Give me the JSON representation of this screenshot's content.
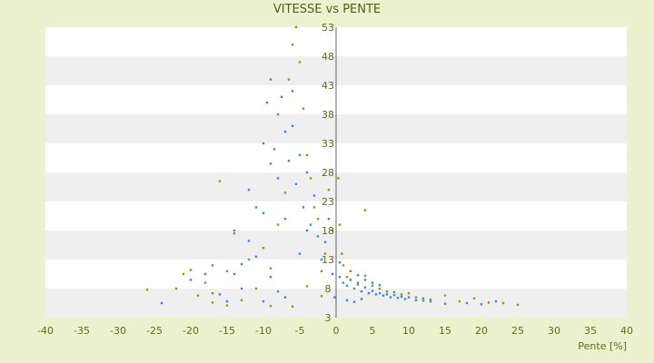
{
  "chart_data": {
    "type": "scatter",
    "title": "VITESSE vs PENTE",
    "xlabel": "Pente [%]",
    "ylabel": "",
    "xlim": [
      -40,
      40
    ],
    "ylim": [
      3,
      53
    ],
    "x_ticks": [
      -40,
      -35,
      -30,
      -25,
      -20,
      -15,
      -10,
      -5,
      0,
      5,
      10,
      15,
      20,
      25,
      30,
      35,
      40
    ],
    "y_ticks": [
      3,
      8,
      13,
      18,
      23,
      28,
      33,
      38,
      43,
      48,
      53
    ],
    "grid": true,
    "legend": "none",
    "colors": {
      "page_background": "#ecf2cf",
      "plot_band_light": "#ffffff",
      "plot_band_dark": "#efefef",
      "axis_text": "#5c6b1a"
    },
    "series": [
      {
        "color": "#3a8ad8",
        "points": [
          [
            -24,
            5.5
          ],
          [
            -20,
            9.5
          ],
          [
            -18,
            10.5
          ],
          [
            -17,
            12
          ],
          [
            -16,
            7
          ],
          [
            -15,
            5.8
          ],
          [
            -14,
            10.5
          ],
          [
            -13,
            12.2
          ],
          [
            -12,
            16.2
          ],
          [
            -11,
            13.5
          ],
          [
            -10,
            21
          ],
          [
            -9,
            29.5
          ],
          [
            -8.5,
            32
          ],
          [
            -8,
            38
          ],
          [
            -7.5,
            41
          ],
          [
            -7,
            35
          ],
          [
            -6.5,
            30
          ],
          [
            -6,
            42
          ],
          [
            -5.5,
            26
          ],
          [
            -5,
            31
          ],
          [
            -4.5,
            22
          ],
          [
            -4,
            28
          ],
          [
            -3.5,
            19
          ],
          [
            -3,
            24
          ],
          [
            -2.5,
            17
          ],
          [
            -2,
            13
          ],
          [
            -1.5,
            16
          ],
          [
            -1,
            20
          ],
          [
            -0.5,
            10.5
          ],
          [
            -0.2,
            6.5
          ],
          [
            -12,
            25
          ],
          [
            -11,
            22
          ],
          [
            -10,
            33
          ],
          [
            -9.5,
            40
          ],
          [
            -9,
            44
          ],
          [
            -8,
            27
          ],
          [
            -7,
            20
          ],
          [
            -6,
            36
          ],
          [
            -5,
            14
          ],
          [
            -4,
            18
          ],
          [
            -14,
            18
          ],
          [
            -13,
            8
          ],
          [
            -9,
            10
          ],
          [
            -7,
            6.5
          ],
          [
            -10,
            5.8
          ],
          [
            -8,
            7.5
          ],
          [
            0.5,
            10
          ],
          [
            1,
            9
          ],
          [
            1.5,
            8.5
          ],
          [
            2,
            9.5
          ],
          [
            2.5,
            8
          ],
          [
            3,
            8.7
          ],
          [
            3.5,
            7.5
          ],
          [
            4,
            8.2
          ],
          [
            4.5,
            7.2
          ],
          [
            5,
            7.6
          ],
          [
            5.5,
            7
          ],
          [
            6,
            7.2
          ],
          [
            6.5,
            6.8
          ],
          [
            7,
            7
          ],
          [
            7.5,
            6.5
          ],
          [
            8,
            6.9
          ],
          [
            8.5,
            6.4
          ],
          [
            9,
            6.6
          ],
          [
            9.5,
            6.2
          ],
          [
            10,
            6.5
          ],
          [
            11,
            6
          ],
          [
            12,
            6.3
          ],
          [
            13,
            5.8
          ],
          [
            15,
            5.4
          ],
          [
            18,
            5.5
          ],
          [
            20,
            5.3
          ],
          [
            22,
            5.8
          ],
          [
            2,
            11
          ],
          [
            3,
            10.3
          ],
          [
            4,
            9.5
          ],
          [
            5,
            9
          ],
          [
            6,
            8.6
          ],
          [
            1.5,
            6
          ],
          [
            2.5,
            5.7
          ],
          [
            3.5,
            6.2
          ],
          [
            0.5,
            12.5
          ]
        ]
      },
      {
        "color": "#8f9a12",
        "points": [
          [
            -26,
            7.8
          ],
          [
            -22,
            8
          ],
          [
            -21,
            10.5
          ],
          [
            -20,
            11.2
          ],
          [
            -19,
            6.8
          ],
          [
            -18,
            9
          ],
          [
            -17,
            7.2
          ],
          [
            -16,
            26.5
          ],
          [
            -15,
            11
          ],
          [
            -14,
            17.5
          ],
          [
            -13,
            6
          ],
          [
            -12,
            13
          ],
          [
            -11,
            8
          ],
          [
            -10,
            15
          ],
          [
            -9,
            11.5
          ],
          [
            -8,
            19
          ],
          [
            -7,
            24.5
          ],
          [
            -6.5,
            44
          ],
          [
            -6,
            50
          ],
          [
            -5.5,
            53
          ],
          [
            -5,
            47
          ],
          [
            -4.5,
            39
          ],
          [
            -4,
            31
          ],
          [
            -3.5,
            27
          ],
          [
            -3,
            22
          ],
          [
            -2.5,
            20
          ],
          [
            -2,
            11
          ],
          [
            -1.5,
            14
          ],
          [
            -1,
            25
          ],
          [
            -0.5,
            18
          ],
          [
            0.3,
            27
          ],
          [
            0.5,
            19
          ],
          [
            0.8,
            14
          ],
          [
            1,
            12
          ],
          [
            1.5,
            10
          ],
          [
            2,
            11
          ],
          [
            3,
            9
          ],
          [
            4,
            10.2
          ],
          [
            5,
            8.5
          ],
          [
            6,
            8
          ],
          [
            7,
            7.5
          ],
          [
            8,
            7.4
          ],
          [
            9,
            7
          ],
          [
            10,
            7.2
          ],
          [
            11,
            6.5
          ],
          [
            12,
            5.9
          ],
          [
            13,
            6.1
          ],
          [
            15,
            6.8
          ],
          [
            17,
            5.8
          ],
          [
            19,
            6.3
          ],
          [
            21,
            5.6
          ],
          [
            23,
            5.5
          ],
          [
            25,
            5.2
          ],
          [
            4,
            21.5
          ],
          [
            -6,
            4.9
          ],
          [
            -4,
            8.4
          ],
          [
            -2,
            6.7
          ],
          [
            -9,
            5
          ],
          [
            -15,
            5.1
          ],
          [
            -17,
            5.6
          ]
        ]
      }
    ]
  }
}
